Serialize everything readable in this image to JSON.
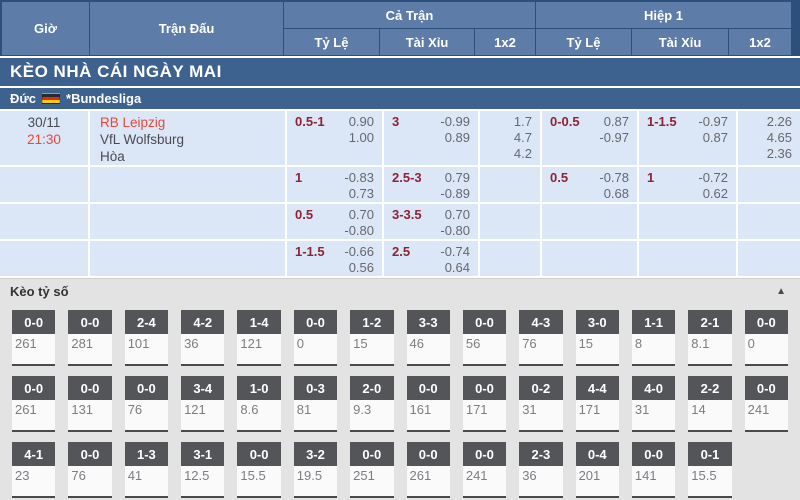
{
  "colors": {
    "header_cell": "#5d7ca7",
    "header_border": "#2c4f7c",
    "banner_bg": "#3e6290",
    "row_bg": "#dbe7f7",
    "handicap_text": "#8e2334",
    "accent_red": "#e8483a",
    "odds_text": "#67676d",
    "score_chip_bg": "#545559",
    "score_panel_bg": "#e3e3e3"
  },
  "table_header": {
    "col_time": "Giờ",
    "col_match": "Trận Đấu",
    "group_full": "Cả Trận",
    "group_half": "Hiệp 1",
    "sub_hdp": "Tỷ Lệ",
    "sub_ou": "Tài Xỉu",
    "sub_1x2": "1x2"
  },
  "banner": {
    "title": "KÈO NHÀ CÁI NGÀY MAI"
  },
  "league": {
    "country": "Đức",
    "flag_icon": "germany-flag",
    "name": "*Bundesliga"
  },
  "match": {
    "date": "30/11",
    "time": "21:30",
    "teams": [
      "RB Leipzig",
      "VfL Wolfsburg",
      "Hòa"
    ]
  },
  "odds_rows": [
    {
      "has_match_info": true,
      "ft_hdp": {
        "hc": "0.5-1",
        "odds": [
          "0.90",
          "1.00"
        ]
      },
      "ft_ou": {
        "hc": "3",
        "odds": [
          "-0.99",
          "0.89"
        ]
      },
      "ft_1x2": [
        "1.7",
        "4.7",
        "4.2"
      ],
      "h1_hdp": {
        "hc": "0-0.5",
        "odds": [
          "0.87",
          "-0.97"
        ]
      },
      "h1_ou": {
        "hc": "1-1.5",
        "odds": [
          "-0.97",
          "0.87"
        ]
      },
      "h1_1x2": [
        "2.26",
        "4.65",
        "2.36"
      ]
    },
    {
      "has_match_info": false,
      "ft_hdp": {
        "hc": "1",
        "odds": [
          "-0.83",
          "0.73"
        ]
      },
      "ft_ou": {
        "hc": "2.5-3",
        "odds": [
          "0.79",
          "-0.89"
        ]
      },
      "ft_1x2": [],
      "h1_hdp": {
        "hc": "0.5",
        "odds": [
          "-0.78",
          "0.68"
        ]
      },
      "h1_ou": {
        "hc": "1",
        "odds": [
          "-0.72",
          "0.62"
        ]
      },
      "h1_1x2": []
    },
    {
      "has_match_info": false,
      "ft_hdp": {
        "hc": "0.5",
        "odds": [
          "0.70",
          "-0.80"
        ]
      },
      "ft_ou": {
        "hc": "3-3.5",
        "odds": [
          "0.70",
          "-0.80"
        ]
      },
      "ft_1x2": [],
      "h1_hdp": null,
      "h1_ou": null,
      "h1_1x2": []
    },
    {
      "has_match_info": false,
      "ft_hdp": {
        "hc": "1-1.5",
        "odds": [
          "-0.66",
          "0.56"
        ]
      },
      "ft_ou": {
        "hc": "2.5",
        "odds": [
          "-0.74",
          "0.64"
        ]
      },
      "ft_1x2": [],
      "h1_hdp": null,
      "h1_ou": null,
      "h1_1x2": []
    }
  ],
  "score_section": {
    "title": "Kèo tỷ số",
    "collapse_icon": "▲",
    "rows": [
      [
        {
          "s": "0-0",
          "v": "261"
        },
        {
          "s": "0-0",
          "v": "281"
        },
        {
          "s": "2-4",
          "v": "101"
        },
        {
          "s": "4-2",
          "v": "36"
        },
        {
          "s": "1-4",
          "v": "121"
        },
        {
          "s": "0-0",
          "v": "0"
        },
        {
          "s": "1-2",
          "v": "15"
        },
        {
          "s": "3-3",
          "v": "46"
        },
        {
          "s": "0-0",
          "v": "56"
        },
        {
          "s": "4-3",
          "v": "76"
        },
        {
          "s": "3-0",
          "v": "15"
        },
        {
          "s": "1-1",
          "v": "8"
        },
        {
          "s": "2-1",
          "v": "8.1"
        },
        {
          "s": "0-0",
          "v": "0"
        }
      ],
      [
        {
          "s": "0-0",
          "v": "261"
        },
        {
          "s": "0-0",
          "v": "131"
        },
        {
          "s": "0-0",
          "v": "76"
        },
        {
          "s": "3-4",
          "v": "121"
        },
        {
          "s": "1-0",
          "v": "8.6"
        },
        {
          "s": "0-3",
          "v": "81"
        },
        {
          "s": "2-0",
          "v": "9.3"
        },
        {
          "s": "0-0",
          "v": "161"
        },
        {
          "s": "0-0",
          "v": "171"
        },
        {
          "s": "0-2",
          "v": "31"
        },
        {
          "s": "4-4",
          "v": "171"
        },
        {
          "s": "4-0",
          "v": "31"
        },
        {
          "s": "2-2",
          "v": "14"
        },
        {
          "s": "0-0",
          "v": "241"
        }
      ],
      [
        {
          "s": "4-1",
          "v": "23"
        },
        {
          "s": "0-0",
          "v": "76"
        },
        {
          "s": "1-3",
          "v": "41"
        },
        {
          "s": "3-1",
          "v": "12.5"
        },
        {
          "s": "0-0",
          "v": "15.5"
        },
        {
          "s": "3-2",
          "v": "19.5"
        },
        {
          "s": "0-0",
          "v": "251"
        },
        {
          "s": "0-0",
          "v": "261"
        },
        {
          "s": "0-0",
          "v": "241"
        },
        {
          "s": "2-3",
          "v": "36"
        },
        {
          "s": "0-4",
          "v": "201"
        },
        {
          "s": "0-0",
          "v": "141"
        },
        {
          "s": "0-1",
          "v": "15.5"
        }
      ]
    ]
  }
}
